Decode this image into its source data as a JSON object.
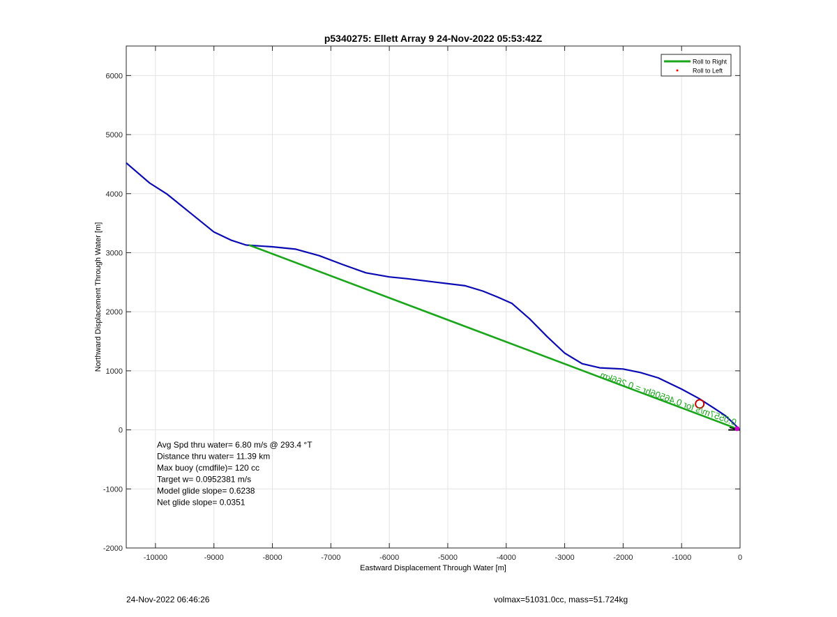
{
  "chart_data": {
    "type": "line",
    "title": "p5340275: Ellett Array 9 24-Nov-2022 05:53:42Z",
    "xlabel": "Eastward Displacement Through Water [m]",
    "ylabel": "Northward Displacement Through Water [m]",
    "xlim": [
      -10500,
      0
    ],
    "ylim": [
      -2000,
      6500
    ],
    "xticks": [
      -10000,
      -9000,
      -8000,
      -7000,
      -6000,
      -5000,
      -4000,
      -3000,
      -2000,
      -1000,
      0
    ],
    "yticks": [
      -2000,
      -1000,
      0,
      1000,
      2000,
      3000,
      4000,
      5000,
      6000
    ],
    "grid": true,
    "legend": {
      "placement": "top-right",
      "entries": [
        {
          "label": "Roll to Right",
          "color": "#1aa61a",
          "marker": "line"
        },
        {
          "label": "Roll to Left",
          "color": "#ff0000",
          "marker": "dot"
        }
      ]
    },
    "series": [
      {
        "color": "#0a0ab4",
        "x": [
          -10500,
          -10100,
          -9800,
          -9400,
          -9000,
          -8700,
          -8450,
          -8000,
          -7600,
          -7200,
          -6800,
          -6400,
          -6000,
          -5700,
          -5200,
          -4700,
          -4400,
          -4150,
          -3900,
          -3600,
          -3300,
          -3000,
          -2700,
          -2400,
          -2000,
          -1700,
          -1400,
          -1000,
          -700,
          -450,
          -250,
          -100,
          0
        ],
        "y": [
          4520,
          4180,
          3990,
          3670,
          3350,
          3210,
          3130,
          3100,
          3060,
          2950,
          2800,
          2660,
          2590,
          2560,
          2500,
          2440,
          2350,
          2250,
          2140,
          1880,
          1580,
          1300,
          1120,
          1050,
          1030,
          970,
          880,
          690,
          530,
          370,
          240,
          100,
          0
        ]
      },
      {
        "color": "#1aa61a",
        "x": [
          -8400,
          0
        ],
        "y": [
          3130,
          0
        ]
      }
    ],
    "current_label": {
      "text": "0.0557m/s for 0.46506hr = 0.266km",
      "color": "#1aa61a",
      "x_start": -2350,
      "y_start": 870,
      "x_end": -140,
      "y_end": 90
    },
    "marker_circle": {
      "x": -690,
      "y": 440,
      "color": "#c80000"
    },
    "end_marker": {
      "x": -50,
      "y": 20,
      "color": "#c800c8"
    },
    "annotations": [
      "Avg Spd thru water=  6.80 m/s @ 293.4 °T",
      "Distance thru water= 11.39 km",
      "Max buoy (cmdfile)= 120 cc",
      "Target w= 0.0952381 m/s",
      "Model glide slope= 0.6238",
      "Net glide slope= 0.0351"
    ]
  },
  "footer": {
    "left": "24-Nov-2022 06:46:26",
    "right": "volmax=51031.0cc, mass=51.724kg"
  }
}
